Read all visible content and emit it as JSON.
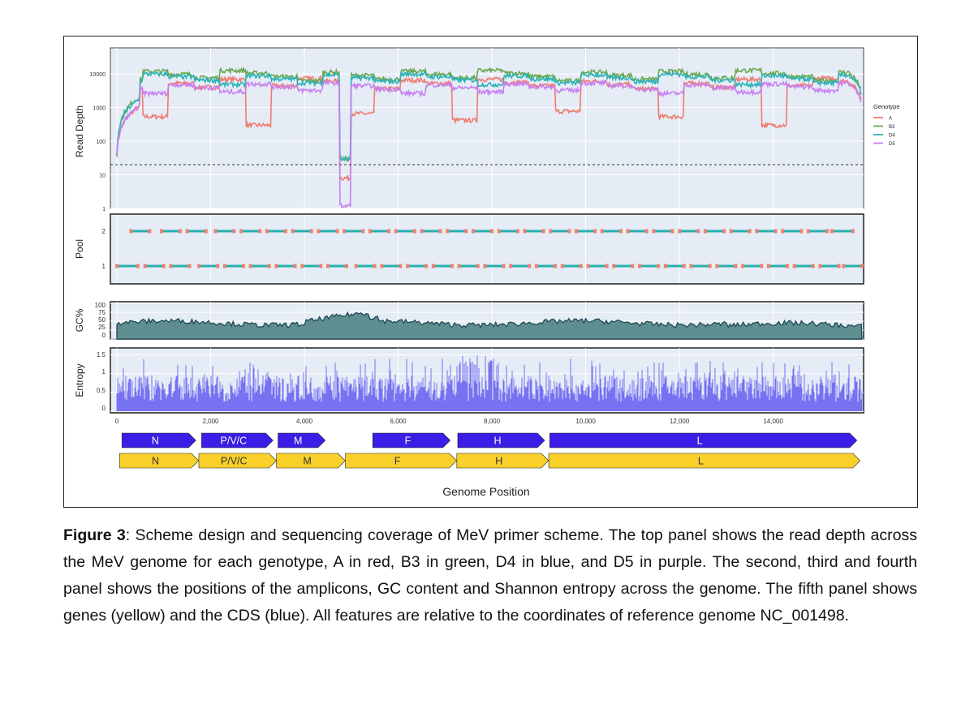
{
  "figure": {
    "read_depth_panel": {
      "ylabel": "Read Depth",
      "yticks": [
        "10000",
        "1000",
        "100",
        "10",
        "1"
      ],
      "threshold": 20,
      "legend_title": "Genotype",
      "legend_items": [
        {
          "label": "A",
          "color": "#f07a6e"
        },
        {
          "label": "B3",
          "color": "#6aa84f"
        },
        {
          "label": "D4",
          "color": "#2bb3b8"
        },
        {
          "label": "D5",
          "color": "#c880f0"
        }
      ]
    },
    "pool_panel": {
      "ylabel": "Pool",
      "yticks": [
        "2",
        "1"
      ]
    },
    "gc_panel": {
      "ylabel": "GC%",
      "yticks": [
        "100",
        "75",
        "50",
        "25",
        "0"
      ]
    },
    "entropy_panel": {
      "ylabel": "Entropy",
      "yticks": [
        "1.5",
        "1",
        "0.5",
        "0"
      ]
    },
    "xticks": [
      "0",
      "2,000",
      "4,000",
      "6,000",
      "8,000",
      "10,000",
      "12,000",
      "14,000"
    ],
    "xlabel": "Genome Position",
    "cds": [
      {
        "label": "N",
        "start": 108,
        "end": 1685
      },
      {
        "label": "P/V/C",
        "start": 1807,
        "end": 3330
      },
      {
        "label": "M",
        "start": 3438,
        "end": 4445
      },
      {
        "label": "F",
        "start": 5458,
        "end": 7110
      },
      {
        "label": "H",
        "start": 7271,
        "end": 9125
      },
      {
        "label": "L",
        "start": 9234,
        "end": 15786
      }
    ],
    "genes": [
      {
        "label": "N",
        "start": 56,
        "end": 1744
      },
      {
        "label": "P/V/C",
        "start": 1748,
        "end": 3402
      },
      {
        "label": "M",
        "start": 3406,
        "end": 4872
      },
      {
        "label": "F",
        "start": 4876,
        "end": 7247
      },
      {
        "label": "H",
        "start": 7251,
        "end": 9208
      },
      {
        "label": "L",
        "start": 9212,
        "end": 15854
      }
    ],
    "cds_color": "#3a1ee6",
    "gene_color": "#f9d02a"
  },
  "chart_data": [
    {
      "type": "line",
      "title": "",
      "ylabel": "Read Depth",
      "yscale": "log",
      "ylim": [
        1,
        60000
      ],
      "xlim": [
        0,
        15894
      ],
      "series": [
        {
          "name": "A",
          "color": "#f07a6e"
        },
        {
          "name": "B3",
          "color": "#6aa84f"
        },
        {
          "name": "D4",
          "color": "#2bb3b8"
        },
        {
          "name": "D5",
          "color": "#c880f0"
        }
      ],
      "reference_line": 20
    },
    {
      "type": "scatter",
      "ylabel": "Pool",
      "amplicon_pools": [
        1,
        2
      ],
      "amplicons_pool_1": [
        [
          0,
          450
        ],
        [
          600,
          1000
        ],
        [
          1150,
          1550
        ],
        [
          1750,
          2150
        ],
        [
          2300,
          2700
        ],
        [
          2850,
          3250
        ],
        [
          3400,
          3800
        ],
        [
          3950,
          4350
        ],
        [
          4500,
          4900
        ],
        [
          5100,
          5500
        ],
        [
          5650,
          6050
        ],
        [
          6200,
          6600
        ],
        [
          6750,
          7150
        ],
        [
          7300,
          7700
        ],
        [
          7850,
          8250
        ],
        [
          8400,
          8800
        ],
        [
          8950,
          9350
        ],
        [
          9500,
          9900
        ],
        [
          10050,
          10450
        ],
        [
          10600,
          11000
        ],
        [
          11150,
          11550
        ],
        [
          11700,
          12100
        ],
        [
          12250,
          12650
        ],
        [
          12800,
          13200
        ],
        [
          13350,
          13750
        ],
        [
          13900,
          14300
        ],
        [
          14450,
          14850
        ],
        [
          15000,
          15400
        ],
        [
          15500,
          15894
        ]
      ],
      "amplicons_pool_2": [
        [
          300,
          700
        ],
        [
          950,
          1350
        ],
        [
          1500,
          1900
        ],
        [
          2100,
          2500
        ],
        [
          2650,
          3050
        ],
        [
          3200,
          3600
        ],
        [
          3750,
          4150
        ],
        [
          4300,
          4700
        ],
        [
          4850,
          5250
        ],
        [
          5400,
          5800
        ],
        [
          5950,
          6350
        ],
        [
          6500,
          6900
        ],
        [
          7050,
          7450
        ],
        [
          7600,
          8000
        ],
        [
          8150,
          8550
        ],
        [
          8700,
          9100
        ],
        [
          9250,
          9650
        ],
        [
          9800,
          10200
        ],
        [
          10350,
          10750
        ],
        [
          10900,
          11300
        ],
        [
          11450,
          11850
        ],
        [
          12000,
          12400
        ],
        [
          12550,
          12950
        ],
        [
          13100,
          13500
        ],
        [
          13650,
          14050
        ],
        [
          14200,
          14600
        ],
        [
          14750,
          15150
        ],
        [
          15250,
          15700
        ]
      ]
    },
    {
      "type": "area",
      "ylabel": "GC%",
      "ylim": [
        0,
        100
      ],
      "mean_value": 45
    },
    {
      "type": "bar",
      "ylabel": "Entropy",
      "ylim": [
        0,
        1.6
      ],
      "typical_range": [
        0,
        1.0
      ],
      "max_value": 1.55
    }
  ],
  "caption": {
    "label": "Figure 3",
    "text": ": Scheme design and sequencing coverage of MeV primer scheme. The top panel shows the read depth across the MeV genome for each genotype, A in red, B3 in green, D4 in blue, and D5 in purple. The second, third and fourth panel shows the positions of the amplicons, GC content and Shannon entropy across the genome. The fifth panel shows genes (yellow) and the CDS (blue). All features are relative to the coordinates of reference genome NC_001498."
  }
}
